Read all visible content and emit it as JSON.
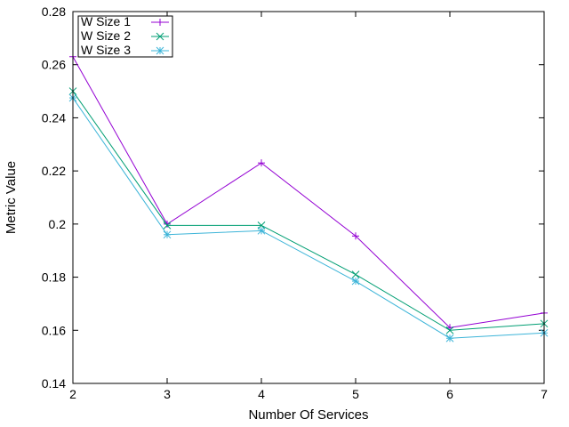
{
  "chart_data": {
    "type": "line",
    "title": "",
    "xlabel": "Number Of Services",
    "ylabel": "Metric Value",
    "x": [
      2,
      3,
      4,
      5,
      6,
      7
    ],
    "x_ticks": [
      "2",
      "3",
      "4",
      "5",
      "6",
      "7"
    ],
    "xlim": [
      2,
      7
    ],
    "y_ticks": [
      "0.14",
      "0.16",
      "0.18",
      "0.2",
      "0.22",
      "0.24",
      "0.26",
      "0.28"
    ],
    "ylim": [
      0.14,
      0.28
    ],
    "grid": false,
    "legend_position": "top-left",
    "series": [
      {
        "name": "W Size 1",
        "values": [
          0.263,
          0.2,
          0.223,
          0.1955,
          0.161,
          0.1665
        ],
        "color": "#9400d3",
        "marker": "plus"
      },
      {
        "name": "W Size 2",
        "values": [
          0.25,
          0.1995,
          0.1995,
          0.181,
          0.16,
          0.1625
        ],
        "color": "#009e73",
        "marker": "cross"
      },
      {
        "name": "W Size 3",
        "values": [
          0.2475,
          0.196,
          0.1975,
          0.1785,
          0.157,
          0.159
        ],
        "color": "#3cb4d8",
        "marker": "star"
      }
    ]
  }
}
